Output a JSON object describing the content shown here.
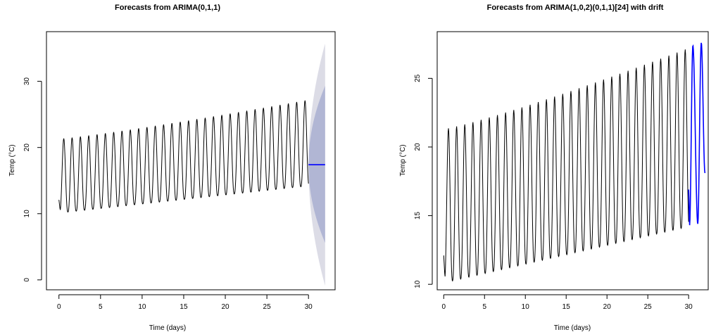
{
  "chart_data": [
    {
      "type": "line",
      "title": "Forecasts from ARIMA(0,1,1)",
      "xlabel": "Time (days)",
      "ylabel": "Temp (°C)",
      "xlim": [
        -1.5,
        33.2
      ],
      "ylim": [
        -1.5,
        37.5
      ],
      "xticks": [
        0,
        5,
        10,
        15,
        20,
        25,
        30
      ],
      "yticks": [
        0,
        10,
        20,
        30
      ],
      "grid": false,
      "series": [
        {
          "kind": "observed",
          "color": "#000000",
          "x_range": [
            0,
            30
          ],
          "samples_per_day": 24,
          "start_value": 12.1,
          "first_trough": 9.9,
          "peak_start": 21.3,
          "peak_end": 27.2,
          "trough_start": 10.1,
          "trough_end": 14.2
        },
        {
          "kind": "forecast",
          "color": "#0000ff",
          "x": [
            30,
            32
          ],
          "y": [
            17.4,
            17.4
          ]
        },
        {
          "kind": "interval_95",
          "color": "#dcdce6",
          "x": [
            30,
            32
          ],
          "upper": [
            17.4,
            35.7
          ],
          "lower": [
            17.4,
            -0.9
          ]
        },
        {
          "kind": "interval_80",
          "color": "#b1b6d4",
          "x": [
            30,
            32
          ],
          "upper": [
            17.4,
            29.3
          ],
          "lower": [
            17.4,
            5.6
          ]
        }
      ]
    },
    {
      "type": "line",
      "title": "Forecasts from ARIMA(1,0,2)(0,1,1)[24] with drift",
      "xlabel": "Time (days)",
      "ylabel": "Temp (°C)",
      "xlim": [
        -0.8,
        32.4
      ],
      "ylim": [
        9.6,
        28.4
      ],
      "xticks": [
        0,
        5,
        10,
        15,
        20,
        25,
        30
      ],
      "yticks": [
        10,
        15,
        20,
        25
      ],
      "grid": false,
      "series": [
        {
          "kind": "observed",
          "color": "#000000",
          "x_range": [
            0,
            30
          ],
          "samples_per_day": 24,
          "start_value": 12.1,
          "first_trough": 9.9,
          "peak_start": 21.3,
          "peak_end": 27.2,
          "trough_start": 10.1,
          "trough_end": 14.2
        },
        {
          "kind": "forecast",
          "color": "#0000ff",
          "x_range": [
            30,
            32
          ],
          "start_value": 16.9,
          "troughs": [
            14.3,
            14.4
          ],
          "peaks": [
            27.4,
            27.6
          ],
          "end_value": 18.1
        }
      ]
    }
  ]
}
